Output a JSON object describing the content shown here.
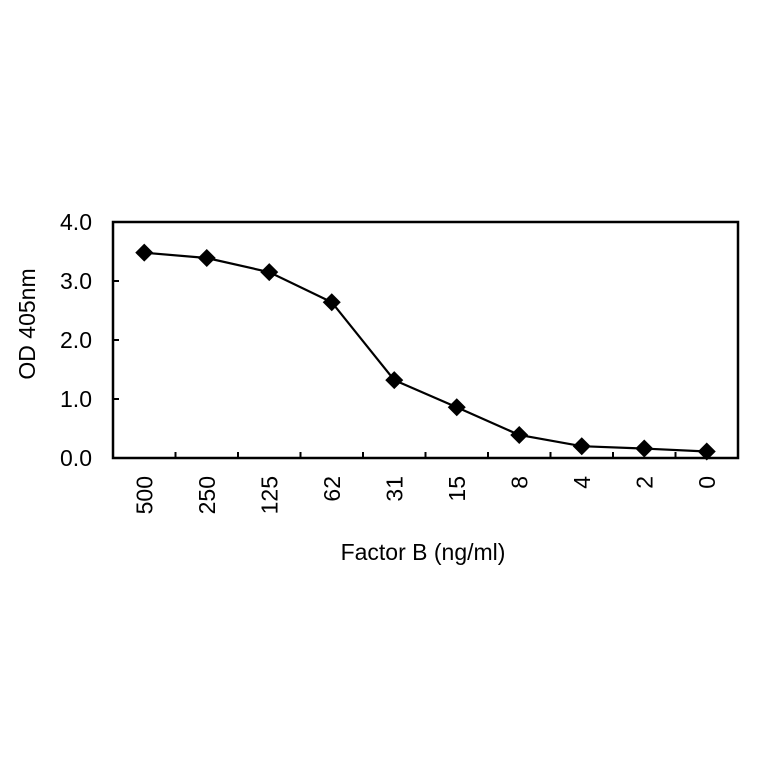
{
  "chart_data": {
    "type": "line",
    "title": "",
    "xlabel": "Factor B (ng/ml)",
    "ylabel": "OD 405nm",
    "categories": [
      "500",
      "250",
      "125",
      "62",
      "31",
      "15",
      "8",
      "4",
      "2",
      "0"
    ],
    "series": [
      {
        "name": "Factor B",
        "marker": "diamond",
        "color": "#000000",
        "values": [
          3.48,
          3.39,
          3.15,
          2.64,
          1.32,
          0.86,
          0.39,
          0.2,
          0.16,
          0.11
        ]
      }
    ],
    "ylim": [
      0,
      4.0
    ],
    "yticks": [
      "0.0",
      "1.0",
      "2.0",
      "3.0",
      "4.0"
    ],
    "grid": false,
    "legend": null
  }
}
